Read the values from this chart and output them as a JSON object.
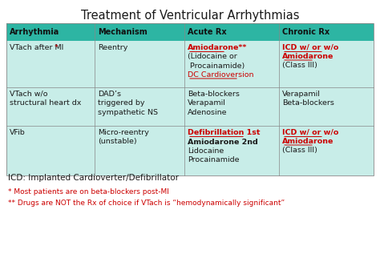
{
  "title": "Treatment of Ventricular Arrhythmias",
  "bg_color": "#ffffff",
  "header_bg": "#2db5a3",
  "row_bg": "#c8ede8",
  "headers": [
    "Arrhythmia",
    "Mechanism",
    "Acute Rx",
    "Chronic Rx"
  ],
  "footer_icd": "ICD: Implanted Cardioverter/Defibrillator",
  "footer1": "* Most patients are on beta-blockers post-MI",
  "footer2": "** Drugs are NOT the Rx of choice if VTach is “hemodynamically significant”",
  "rows": [
    {
      "arrhythmia": "VTach after MI",
      "arrhythmia_star": true,
      "mechanism": "Reentry",
      "acute_rx": [
        {
          "text": "Amiodarone**",
          "color": "#cc0000",
          "bold": true,
          "underline": true
        },
        {
          "text": "(Lidocaine or\n Procainamide)",
          "color": "#1a1a1a",
          "bold": false,
          "underline": false
        },
        {
          "text": "DC Cardioversion",
          "color": "#cc0000",
          "bold": false,
          "underline": true
        }
      ],
      "chronic_rx": [
        {
          "text": "ICD w/ or w/o\nAmiodarone",
          "color": "#cc0000",
          "bold": true,
          "underline": true
        },
        {
          "text": "(Class III)",
          "color": "#1a1a1a",
          "bold": false,
          "underline": false
        }
      ]
    },
    {
      "arrhythmia": "VTach w/o\nstructural heart dx",
      "arrhythmia_star": false,
      "mechanism": "DAD’s\ntriggered by\nsympathetic NS",
      "acute_rx": [
        {
          "text": "Beta-blockers\nVerapamil\nAdenosine",
          "color": "#1a1a1a",
          "bold": false,
          "underline": false
        }
      ],
      "chronic_rx": [
        {
          "text": "Verapamil\nBeta-blockers",
          "color": "#1a1a1a",
          "bold": false,
          "underline": false
        }
      ]
    },
    {
      "arrhythmia": "VFib",
      "arrhythmia_star": false,
      "mechanism": "Micro-reentry\n(unstable)",
      "acute_rx": [
        {
          "text": "Defibrillation 1st",
          "color": "#cc0000",
          "bold": true,
          "underline": true
        },
        {
          "text": "Amiodarone 2nd",
          "color": "#1a1a1a",
          "bold": true,
          "underline": false
        },
        {
          "text": "Lidocaine\nProcainamide",
          "color": "#1a1a1a",
          "bold": false,
          "underline": false
        }
      ],
      "chronic_rx": [
        {
          "text": "ICD w/ or w/o\nAmiodarone",
          "color": "#cc0000",
          "bold": true,
          "underline": true
        },
        {
          "text": "(Class III)",
          "color": "#1a1a1a",
          "bold": false,
          "underline": false
        }
      ]
    }
  ]
}
